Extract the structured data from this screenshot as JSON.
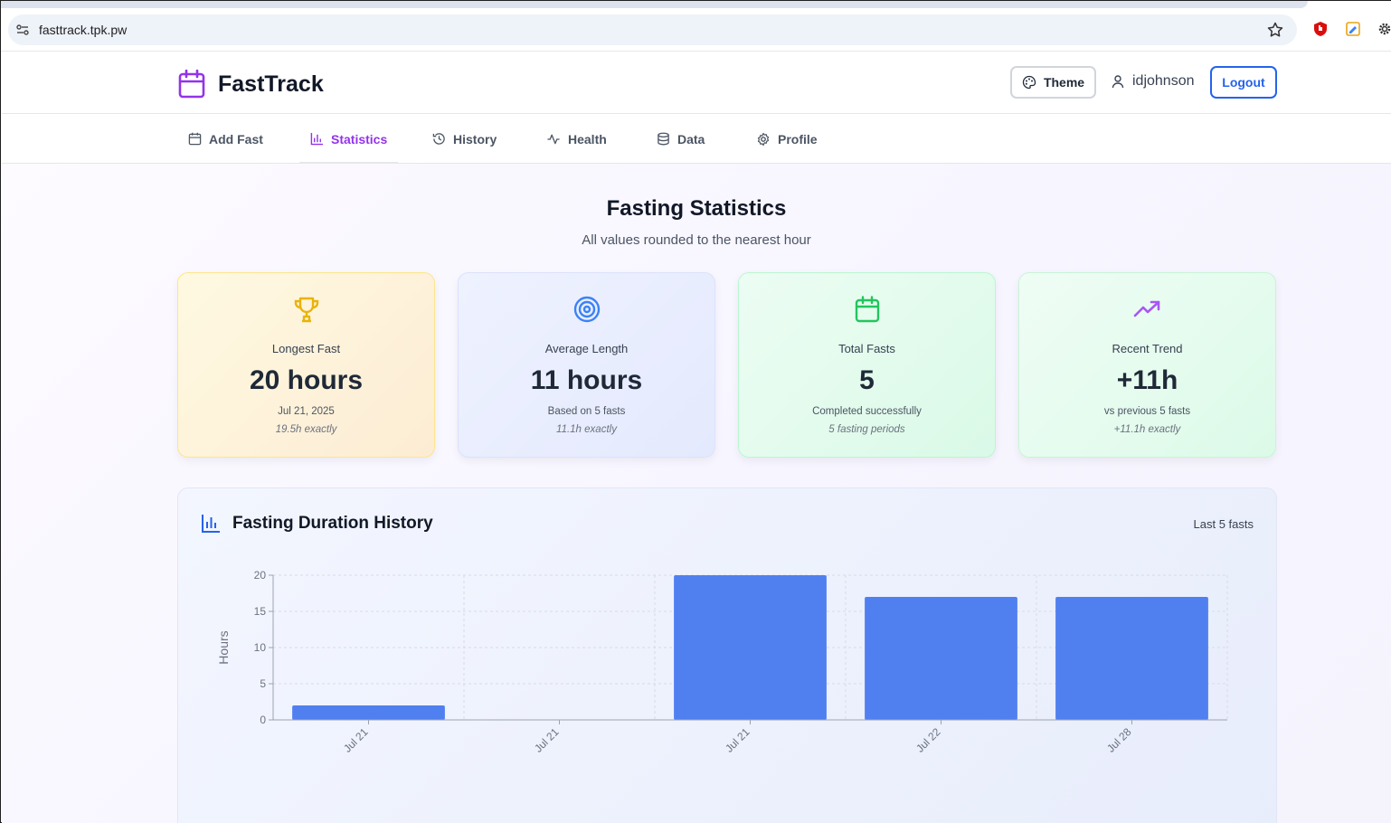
{
  "browser": {
    "url": "fasttrack.tpk.pw"
  },
  "header": {
    "brand": "FastTrack",
    "theme_label": "Theme",
    "username": "idjohnson",
    "logout_label": "Logout"
  },
  "nav": {
    "items": [
      {
        "label": "Add Fast",
        "icon": "calendar-icon"
      },
      {
        "label": "Statistics",
        "icon": "bar-chart-icon",
        "active": true
      },
      {
        "label": "History",
        "icon": "history-icon"
      },
      {
        "label": "Health",
        "icon": "activity-icon"
      },
      {
        "label": "Data",
        "icon": "database-icon"
      },
      {
        "label": "Profile",
        "icon": "gear-icon"
      }
    ]
  },
  "main": {
    "title": "Fasting Statistics",
    "subtitle": "All values rounded to the nearest hour"
  },
  "cards": [
    {
      "label": "Longest Fast",
      "value": "20 hours",
      "sub": "Jul 21, 2025",
      "note": "19.5h exactly",
      "icon": "trophy-icon",
      "accent": "#eab308"
    },
    {
      "label": "Average Length",
      "value": "11 hours",
      "sub": "Based on 5 fasts",
      "note": "11.1h exactly",
      "icon": "target-icon",
      "accent": "#3b82f6"
    },
    {
      "label": "Total Fasts",
      "value": "5",
      "sub": "Completed successfully",
      "note": "5 fasting periods",
      "icon": "calendar-icon",
      "accent": "#22c55e"
    },
    {
      "label": "Recent Trend",
      "value": "+11h",
      "sub": "vs previous 5 fasts",
      "note": "+11.1h exactly",
      "icon": "trending-up-icon",
      "accent": "#a855f7"
    }
  ],
  "chart_panel": {
    "title": "Fasting Duration History",
    "range": "Last 5 fasts"
  },
  "chart_data": {
    "type": "bar",
    "categories": [
      "Jul 21",
      "Jul 21",
      "Jul 21",
      "Jul 22",
      "Jul 28"
    ],
    "values": [
      2,
      0,
      20,
      17,
      17
    ],
    "xlabel": "",
    "ylabel": "Hours",
    "ylim": [
      0,
      20
    ],
    "yticks": [
      0,
      5,
      10,
      15,
      20
    ],
    "grid": true,
    "bar_color": "#5080f0"
  },
  "colors": {
    "brand": "#9333ea",
    "primary": "#2563eb"
  }
}
